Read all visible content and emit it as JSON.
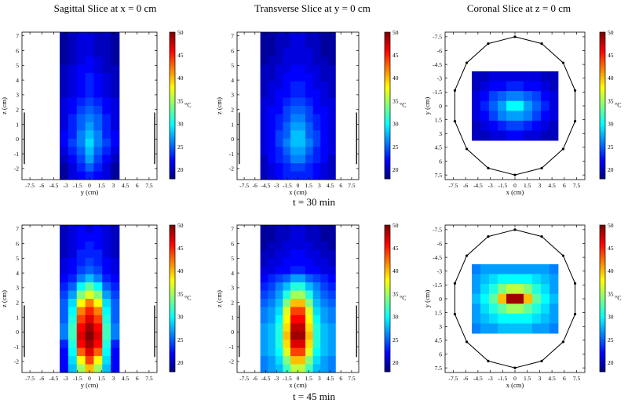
{
  "column_titles": [
    "Sagittal Slice at x = 0 cm",
    "Transverse Slice at y = 0 cm",
    "Coronal Slice at z = 0 cm"
  ],
  "row_labels": [
    "t = 30 min",
    "t = 45 min"
  ],
  "colorbar": {
    "label": "°C",
    "ticks": [
      "20",
      "25",
      "30",
      "35",
      "40",
      "45",
      "50"
    ],
    "range": [
      18,
      50
    ]
  },
  "chart_data": [
    {
      "type": "heatmap",
      "title": "Sagittal Slice at x = 0 cm",
      "time": "t = 30 min",
      "xlabel": "y (cm)",
      "ylabel": "z (cm)",
      "xticks": [
        "-7.5",
        "-6",
        "-4.5",
        "-3",
        "-1.5",
        "0",
        "1.5",
        "3",
        "4.5",
        "6",
        "7.5"
      ],
      "yticks": [
        "-2",
        "-1",
        "0",
        "1",
        "2",
        "3",
        "4",
        "5",
        "6",
        "7"
      ],
      "xlim": [
        -8.5,
        8.5
      ],
      "ylim": [
        -2.75,
        7.25
      ],
      "x_range": [
        -3.75,
        3.75
      ],
      "y_range": [
        -2.75,
        7.25
      ],
      "values": [
        [
          19,
          20,
          21,
          21,
          20,
          20,
          19
        ],
        [
          19,
          20,
          21,
          21,
          20,
          20,
          19
        ],
        [
          19,
          20,
          21,
          21,
          20,
          20,
          19
        ],
        [
          19,
          20,
          21,
          22,
          21,
          20,
          19
        ],
        [
          20,
          21,
          22,
          22,
          21,
          20,
          20
        ],
        [
          20,
          21,
          22,
          23,
          22,
          21,
          20
        ],
        [
          20,
          21,
          22,
          23,
          22,
          21,
          20
        ],
        [
          20,
          21,
          22,
          23,
          22,
          21,
          20
        ],
        [
          21,
          22,
          23,
          24,
          23,
          22,
          21
        ],
        [
          21,
          22,
          24,
          25,
          24,
          22,
          21
        ],
        [
          21,
          23,
          25,
          26,
          25,
          23,
          21
        ],
        [
          21,
          23,
          25,
          27,
          25,
          23,
          21
        ],
        [
          22,
          23,
          26,
          28,
          26,
          23,
          22
        ],
        [
          22,
          24,
          26,
          29,
          26,
          24,
          22
        ],
        [
          21,
          23,
          25,
          28,
          25,
          23,
          21
        ],
        [
          20,
          22,
          24,
          27,
          24,
          22,
          20
        ],
        [
          19,
          21,
          23,
          25,
          23,
          21,
          19
        ],
        [
          19,
          21,
          22,
          23,
          22,
          21,
          19
        ]
      ],
      "lines": [
        [
          -8.2,
          -1.7,
          -8.2,
          1.8
        ],
        [
          8.2,
          -1.7,
          8.2,
          1.8
        ]
      ]
    },
    {
      "type": "heatmap",
      "title": "Transverse Slice at y = 0 cm",
      "time": "t = 30 min",
      "xlabel": "x (cm)",
      "ylabel": "z (cm)",
      "xticks": [
        "-7.5",
        "-6",
        "-4.5",
        "-3",
        "-1.5",
        "0",
        "1.5",
        "3",
        "4.5",
        "6",
        "7.5"
      ],
      "yticks": [
        "-2",
        "-1",
        "0",
        "1",
        "2",
        "3",
        "4",
        "5",
        "6",
        "7"
      ],
      "xlim": [
        -8.5,
        8.5
      ],
      "ylim": [
        -2.75,
        7.25
      ],
      "x_range": [
        -5.25,
        5.25
      ],
      "y_range": [
        -2.75,
        7.25
      ],
      "values": [
        [
          19,
          19,
          20,
          20,
          21,
          21,
          20,
          20,
          19,
          19
        ],
        [
          19,
          19,
          20,
          20,
          21,
          21,
          20,
          20,
          19,
          19
        ],
        [
          19,
          19,
          20,
          21,
          21,
          21,
          21,
          20,
          19,
          19
        ],
        [
          19,
          20,
          20,
          21,
          21,
          21,
          21,
          20,
          20,
          19
        ],
        [
          20,
          20,
          21,
          21,
          22,
          22,
          21,
          21,
          20,
          20
        ],
        [
          20,
          20,
          21,
          22,
          22,
          22,
          22,
          21,
          20,
          20
        ],
        [
          20,
          21,
          21,
          22,
          23,
          23,
          22,
          21,
          21,
          20
        ],
        [
          20,
          21,
          22,
          22,
          23,
          23,
          22,
          22,
          21,
          20
        ],
        [
          21,
          21,
          22,
          23,
          24,
          24,
          23,
          22,
          21,
          21
        ],
        [
          21,
          22,
          22,
          24,
          25,
          25,
          24,
          22,
          22,
          21
        ],
        [
          21,
          22,
          23,
          24,
          26,
          26,
          24,
          23,
          22,
          21
        ],
        [
          21,
          22,
          23,
          25,
          27,
          27,
          25,
          23,
          22,
          21
        ],
        [
          21,
          22,
          24,
          25,
          28,
          28,
          25,
          24,
          22,
          21
        ],
        [
          21,
          22,
          24,
          26,
          28,
          28,
          26,
          24,
          22,
          21
        ],
        [
          21,
          22,
          23,
          25,
          27,
          27,
          25,
          23,
          22,
          21
        ],
        [
          20,
          22,
          23,
          24,
          26,
          26,
          24,
          23,
          22,
          20
        ],
        [
          20,
          21,
          22,
          23,
          24,
          24,
          23,
          22,
          21,
          20
        ],
        [
          20,
          21,
          22,
          23,
          23,
          23,
          23,
          22,
          21,
          20
        ]
      ],
      "lines": [
        [
          -8.2,
          -1.7,
          -8.2,
          1.8
        ],
        [
          8.2,
          -1.7,
          8.2,
          1.8
        ]
      ]
    },
    {
      "type": "heatmap",
      "title": "Coronal Slice at z = 0 cm",
      "time": "t = 30 min",
      "xlabel": "x (cm)",
      "ylabel": "y (cm)",
      "xticks": [
        "-7.5",
        "-6",
        "-4.5",
        "-3",
        "-1.5",
        "0",
        "1.5",
        "3",
        "4.5",
        "6",
        "7.5"
      ],
      "yticks": [
        "-7.5",
        "-6",
        "-4.5",
        "-3",
        "-1.5",
        "0",
        "1.5",
        "3",
        "4.5",
        "6",
        "7.5"
      ],
      "xlim": [
        -8.5,
        8.5
      ],
      "ylim": [
        -8,
        8
      ],
      "y_inverted": true,
      "x_range": [
        -5.25,
        5.25
      ],
      "y_range": [
        -3.75,
        3.75
      ],
      "values": [
        [
          20,
          20,
          21,
          21,
          21,
          21,
          21,
          21,
          20,
          20
        ],
        [
          20,
          21,
          22,
          22,
          23,
          23,
          22,
          22,
          21,
          20
        ],
        [
          21,
          22,
          24,
          25,
          26,
          26,
          25,
          24,
          22,
          21
        ],
        [
          21,
          23,
          25,
          27,
          30,
          30,
          27,
          25,
          23,
          21
        ],
        [
          21,
          22,
          24,
          26,
          27,
          27,
          26,
          24,
          22,
          21
        ],
        [
          20,
          21,
          22,
          23,
          24,
          24,
          23,
          22,
          21,
          20
        ],
        [
          20,
          20,
          21,
          21,
          22,
          22,
          21,
          21,
          20,
          20
        ]
      ],
      "polygon_sides": 14,
      "polygon_radius": 7.5
    },
    {
      "type": "heatmap",
      "title": "Sagittal Slice at x = 0 cm",
      "time": "t = 45 min",
      "xlabel": "y (cm)",
      "ylabel": "z (cm)",
      "xticks": [
        "-7.5",
        "-6",
        "-4.5",
        "-3",
        "-1.5",
        "0",
        "1.5",
        "3",
        "4.5",
        "6",
        "7.5"
      ],
      "yticks": [
        "-2",
        "-1",
        "0",
        "1",
        "2",
        "3",
        "4",
        "5",
        "6",
        "7"
      ],
      "xlim": [
        -8.5,
        8.5
      ],
      "ylim": [
        -2.75,
        7.25
      ],
      "x_range": [
        -3.75,
        3.75
      ],
      "y_range": [
        -2.75,
        7.25
      ],
      "values": [
        [
          20,
          21,
          22,
          21,
          22,
          21,
          20
        ],
        [
          20,
          21,
          22,
          22,
          22,
          21,
          20
        ],
        [
          20,
          21,
          22,
          23,
          22,
          21,
          20
        ],
        [
          20,
          21,
          23,
          23,
          23,
          21,
          20
        ],
        [
          21,
          22,
          23,
          24,
          23,
          22,
          21
        ],
        [
          21,
          22,
          24,
          25,
          24,
          22,
          21
        ],
        [
          22,
          23,
          26,
          28,
          26,
          23,
          22
        ],
        [
          23,
          25,
          30,
          33,
          30,
          25,
          23
        ],
        [
          24,
          27,
          34,
          37,
          34,
          27,
          24
        ],
        [
          25,
          29,
          38,
          42,
          38,
          29,
          25
        ],
        [
          25,
          30,
          42,
          45,
          42,
          30,
          25
        ],
        [
          25,
          31,
          44,
          47,
          44,
          31,
          25
        ],
        [
          26,
          32,
          46,
          49,
          46,
          32,
          26
        ],
        [
          26,
          32,
          47,
          50,
          47,
          32,
          26
        ],
        [
          23,
          31,
          46,
          49,
          46,
          31,
          23
        ],
        [
          22,
          30,
          43,
          47,
          43,
          30,
          22
        ],
        [
          22,
          29,
          38,
          44,
          38,
          29,
          22
        ],
        [
          22,
          28,
          35,
          40,
          35,
          28,
          22
        ]
      ],
      "lines": [
        [
          -8.2,
          -1.7,
          -8.2,
          1.8
        ],
        [
          8.2,
          -1.7,
          8.2,
          1.8
        ]
      ]
    },
    {
      "type": "heatmap",
      "title": "Transverse Slice at y = 0 cm",
      "time": "t = 45 min",
      "xlabel": "x (cm)",
      "ylabel": "z (cm)",
      "xticks": [
        "-7.5",
        "-6",
        "-4.5",
        "-3",
        "-1.5",
        "0",
        "1.5",
        "3",
        "4.5",
        "6",
        "7.5"
      ],
      "yticks": [
        "-2",
        "-1",
        "0",
        "1",
        "2",
        "3",
        "4",
        "5",
        "6",
        "7"
      ],
      "xlim": [
        -8.5,
        8.5
      ],
      "ylim": [
        -2.75,
        7.25
      ],
      "x_range": [
        -5.25,
        5.25
      ],
      "y_range": [
        -2.75,
        7.25
      ],
      "values": [
        [
          19,
          19,
          20,
          20,
          21,
          21,
          20,
          20,
          19,
          19
        ],
        [
          19,
          19,
          20,
          20,
          21,
          21,
          20,
          20,
          19,
          19
        ],
        [
          19,
          20,
          20,
          21,
          21,
          21,
          21,
          20,
          20,
          19
        ],
        [
          20,
          20,
          21,
          21,
          22,
          22,
          21,
          21,
          20,
          20
        ],
        [
          20,
          21,
          21,
          22,
          22,
          22,
          22,
          21,
          21,
          20
        ],
        [
          21,
          21,
          22,
          22,
          23,
          23,
          22,
          22,
          21,
          21
        ],
        [
          22,
          23,
          24,
          25,
          27,
          27,
          25,
          24,
          23,
          22
        ],
        [
          23,
          24,
          26,
          28,
          31,
          31,
          28,
          26,
          24,
          23
        ],
        [
          24,
          25,
          27,
          31,
          35,
          35,
          31,
          27,
          25,
          24
        ],
        [
          25,
          26,
          28,
          34,
          40,
          40,
          34,
          28,
          26,
          25
        ],
        [
          26,
          27,
          29,
          37,
          44,
          44,
          37,
          29,
          27,
          26
        ],
        [
          26,
          27,
          30,
          38,
          46,
          46,
          38,
          30,
          27,
          26
        ],
        [
          27,
          28,
          31,
          39,
          48,
          48,
          39,
          31,
          28,
          27
        ],
        [
          27,
          28,
          31,
          40,
          49,
          49,
          40,
          31,
          28,
          27
        ],
        [
          27,
          28,
          31,
          39,
          47,
          47,
          39,
          31,
          28,
          27
        ],
        [
          27,
          28,
          30,
          37,
          44,
          44,
          37,
          30,
          28,
          27
        ],
        [
          26,
          27,
          29,
          34,
          40,
          40,
          34,
          29,
          27,
          26
        ],
        [
          26,
          27,
          28,
          32,
          36,
          36,
          32,
          28,
          27,
          26
        ]
      ],
      "lines": [
        [
          -8.2,
          -1.7,
          -8.2,
          1.8
        ],
        [
          8.2,
          -1.7,
          8.2,
          1.8
        ]
      ]
    },
    {
      "type": "heatmap",
      "title": "Coronal Slice at z = 0 cm",
      "time": "t = 45 min",
      "xlabel": "x (cm)",
      "ylabel": "y (cm)",
      "xticks": [
        "-7.5",
        "-6",
        "-4.5",
        "-3",
        "-1.5",
        "0",
        "1.5",
        "3",
        "4.5",
        "6",
        "7.5"
      ],
      "yticks": [
        "-7.5",
        "-6",
        "-4.5",
        "-3",
        "-1.5",
        "0",
        "1.5",
        "3",
        "4.5",
        "6",
        "7.5"
      ],
      "xlim": [
        -8.5,
        8.5
      ],
      "ylim": [
        -8,
        8
      ],
      "y_inverted": true,
      "x_range": [
        -5.25,
        5.25
      ],
      "y_range": [
        -3.75,
        3.75
      ],
      "values": [
        [
          26,
          27,
          27,
          27,
          27,
          27,
          27,
          27,
          27,
          26
        ],
        [
          27,
          28,
          29,
          30,
          30,
          30,
          30,
          29,
          28,
          27
        ],
        [
          27,
          29,
          31,
          34,
          36,
          36,
          34,
          31,
          29,
          27
        ],
        [
          28,
          30,
          33,
          40,
          49,
          49,
          40,
          33,
          30,
          28
        ],
        [
          27,
          29,
          31,
          33,
          35,
          35,
          33,
          31,
          29,
          27
        ],
        [
          27,
          28,
          29,
          30,
          30,
          30,
          30,
          29,
          28,
          27
        ],
        [
          26,
          27,
          27,
          28,
          28,
          28,
          28,
          27,
          27,
          26
        ]
      ],
      "polygon_sides": 14,
      "polygon_radius": 7.5
    }
  ]
}
